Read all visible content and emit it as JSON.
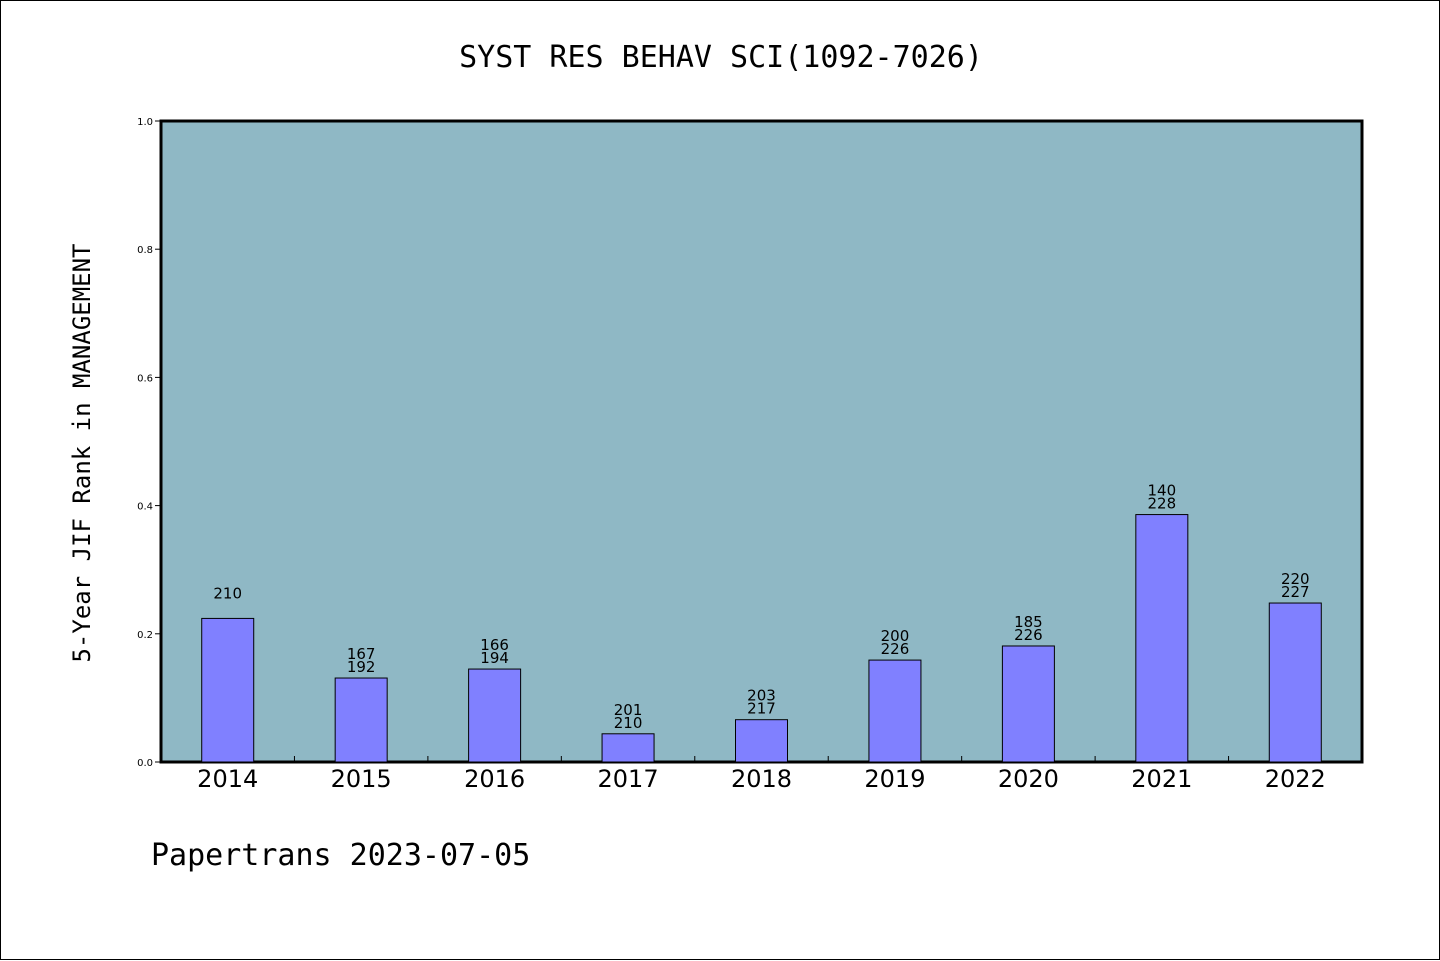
{
  "chart_data": {
    "type": "bar",
    "title": "SYST RES BEHAV SCI(1092-7026)",
    "xlabel": "",
    "ylabel": "5-Year JIF Rank in MANAGEMENT",
    "ylim": [
      0,
      1.0
    ],
    "yticks": [
      "0.0",
      "0.2",
      "0.4",
      "0.6",
      "0.8",
      "1.0"
    ],
    "categories": [
      "2014",
      "2015",
      "2016",
      "2017",
      "2018",
      "2019",
      "2020",
      "2021",
      "2022"
    ],
    "values": [
      0.224,
      0.131,
      0.145,
      0.044,
      0.066,
      0.159,
      0.181,
      0.386,
      0.248
    ],
    "bar_labels": [
      [
        "210"
      ],
      [
        "167",
        "192"
      ],
      [
        "166",
        "194"
      ],
      [
        "201",
        "210"
      ],
      [
        "203",
        "217"
      ],
      [
        "200",
        "226"
      ],
      [
        "185",
        "226"
      ],
      [
        "140",
        "228"
      ],
      [
        "220",
        "227"
      ]
    ],
    "grid": false,
    "colors": {
      "plot_background": "#8fb8c5",
      "bar_fill": "#8080ff",
      "bar_stroke": "#000000"
    }
  },
  "footer": {
    "text": "Papertrans 2023-07-05"
  }
}
